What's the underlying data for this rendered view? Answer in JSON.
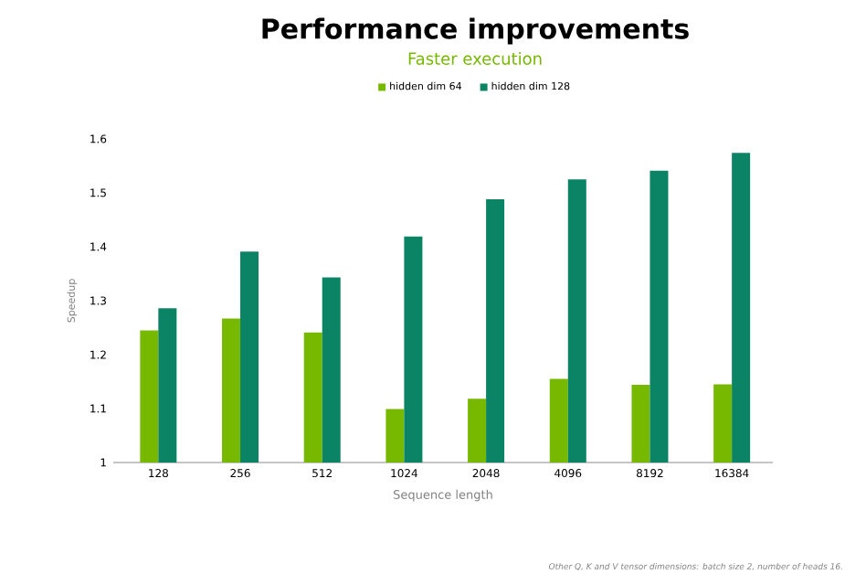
{
  "chart_data": {
    "type": "bar",
    "title": "Performance improvements",
    "subtitle": "Faster execution",
    "xlabel": "Sequence length",
    "ylabel": "Speedup",
    "categories": [
      "128",
      "256",
      "512",
      "1024",
      "2048",
      "4096",
      "8192",
      "16384"
    ],
    "series": [
      {
        "name": "hidden dim 64",
        "color": "#76b900",
        "values": [
          1.245,
          1.267,
          1.241,
          1.099,
          1.118,
          1.155,
          1.144,
          1.145
        ]
      },
      {
        "name": "hidden dim 128",
        "color": "#0b8466",
        "values": [
          1.286,
          1.391,
          1.343,
          1.419,
          1.488,
          1.525,
          1.541,
          1.574
        ]
      }
    ],
    "ylim": [
      1,
      1.6
    ],
    "yticks": [
      1,
      1.1,
      1.2,
      1.3,
      1.4,
      1.5,
      1.6
    ],
    "legend": "top",
    "grid": false,
    "annotations": [
      "Other Q, K and V tensor dimensions: batch size 2, number of heads 16."
    ]
  }
}
